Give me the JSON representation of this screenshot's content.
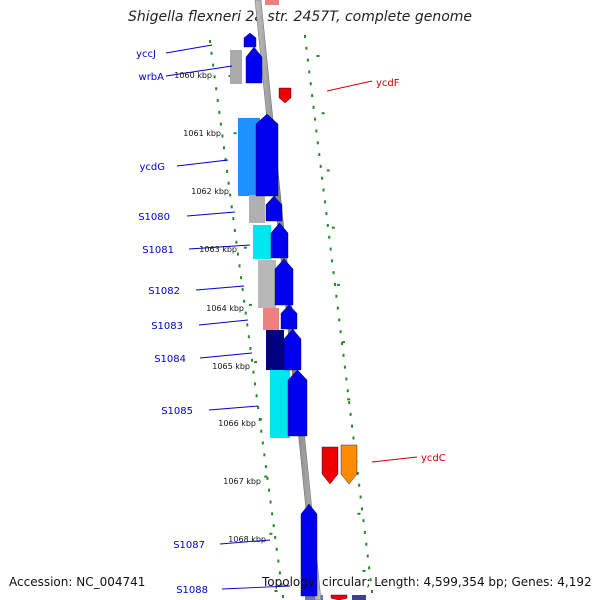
{
  "title": "Shigella flexneri 2a str. 2457T, complete genome",
  "accession_text": "Accession: NC_004741",
  "topology_text": "Topology: circular; Length: 4,599,354 bp; Genes: 4,192",
  "colors": {
    "forward_gene": "#0000ee",
    "reverse_gene": "#ee0000",
    "backbone": "#888888",
    "tick": "#228b22",
    "label_left": "#0000cc",
    "label_right": "#cc0000"
  },
  "scale_labels": [
    "1060 kbp",
    "1061 kbp",
    "1062 kbp",
    "1063 kbp",
    "1064 kbp",
    "1065 kbp",
    "1066 kbp",
    "1067 kbp",
    "1068 kbp"
  ],
  "genes_left": [
    "yccJ",
    "wrbA",
    "ycdG",
    "S1080",
    "S1081",
    "S1082",
    "S1083",
    "S1084",
    "S1085",
    "S1087",
    "S1088"
  ],
  "genes_right": [
    "ycdF",
    "ycdC"
  ]
}
